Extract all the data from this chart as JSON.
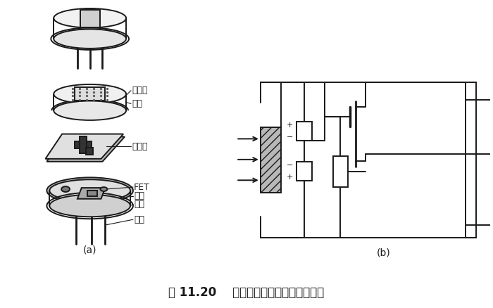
{
  "title": "图 11.20    热释电人体红外传感器的结构",
  "label_a": "(a)",
  "label_b": "(b)",
  "labels": {
    "filter": "滤光片",
    "cap": "管帽",
    "element": "敏感元",
    "fet": "FET",
    "socket": "管座",
    "resistor": "高阻",
    "lead": "引线"
  },
  "bg_color": "#ffffff",
  "line_color": "#1a1a1a"
}
